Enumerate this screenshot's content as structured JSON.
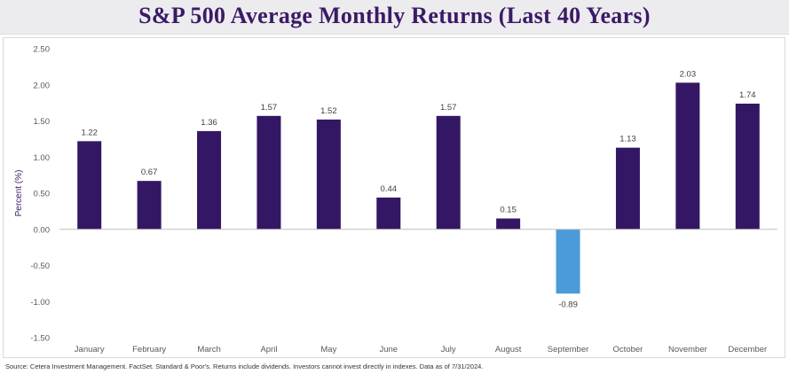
{
  "title": "S&P 500 Average Monthly Returns (Last 40 Years)",
  "source": "Source: Cetera Investment Management. FactSet. Standard & Poor's. Returns include dividends. Investors cannot invest directly in indexes. Data as of 7/31/2024.",
  "colors": {
    "title": "#3b1a66",
    "positive_bar": "#341764",
    "negative_bar": "#4a9bd9",
    "axis_text": "#595959",
    "ylabel": "#3b1a66",
    "zero_line": "#bfbfbf"
  },
  "chart_data": {
    "type": "bar",
    "title": "S&P 500 Average Monthly Returns (Last 40 Years)",
    "xlabel": "",
    "ylabel": "Percent (%)",
    "categories": [
      "January",
      "February",
      "March",
      "April",
      "May",
      "June",
      "July",
      "August",
      "September",
      "October",
      "November",
      "December"
    ],
    "values": [
      1.22,
      0.67,
      1.36,
      1.57,
      1.52,
      0.44,
      1.57,
      0.15,
      -0.89,
      1.13,
      2.03,
      1.74
    ],
    "value_labels": [
      "1.22",
      "0.67",
      "1.36",
      "1.57",
      "1.52",
      "0.44",
      "1.57",
      "0.15",
      "-0.89",
      "1.13",
      "2.03",
      "1.74"
    ],
    "ylim": [
      -1.5,
      2.5
    ],
    "yticks": [
      2.5,
      2.0,
      1.5,
      1.0,
      0.5,
      0.0,
      -0.5,
      -1.0,
      -1.5
    ],
    "ytick_labels": [
      "2.50",
      "2.00",
      "1.50",
      "1.00",
      "0.50",
      "0.00",
      "-0.50",
      "-1.00",
      "-1.50"
    ],
    "grid": false,
    "legend": "none"
  }
}
